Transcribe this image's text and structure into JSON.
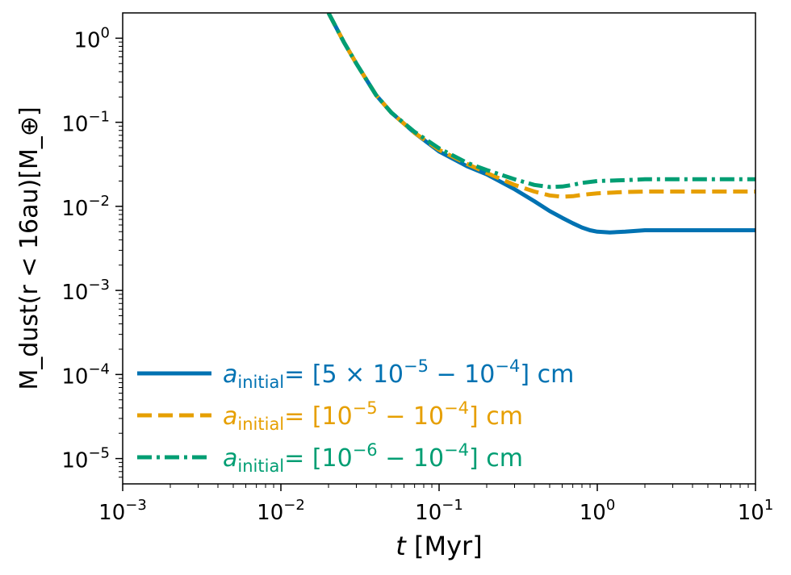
{
  "chart_data": {
    "type": "line",
    "title": "",
    "x_scale": "log",
    "y_scale": "log",
    "xlim": [
      0.001,
      10
    ],
    "ylim": [
      5e-06,
      2
    ],
    "xlabel_var": "t",
    "xlabel_unit": " [Myr]",
    "ylabel": "M_dust(r < 16au)[M_⊕]",
    "x_ticks": [
      {
        "value": 0.001,
        "base": "10",
        "exp": "−3"
      },
      {
        "value": 0.01,
        "base": "10",
        "exp": "−2"
      },
      {
        "value": 0.1,
        "base": "10",
        "exp": "−1"
      },
      {
        "value": 1,
        "base": "10",
        "exp": "0"
      },
      {
        "value": 10,
        "base": "10",
        "exp": "1"
      }
    ],
    "y_ticks": [
      {
        "value": 1e-05,
        "base": "10",
        "exp": "−5"
      },
      {
        "value": 0.0001,
        "base": "10",
        "exp": "−4"
      },
      {
        "value": 0.001,
        "base": "10",
        "exp": "−3"
      },
      {
        "value": 0.01,
        "base": "10",
        "exp": "−2"
      },
      {
        "value": 0.1,
        "base": "10",
        "exp": "−1"
      },
      {
        "value": 1,
        "base": "10",
        "exp": "0"
      }
    ],
    "legend_position": "lower-left",
    "series": [
      {
        "name": "a_initial = [5 × 10^−5 − 10^−4] cm",
        "legend_a": "a",
        "legend_sub": "initial",
        "legend_text": "= [5 × 10",
        "legend_parts": [
          {
            "t": "= [5 × 10",
            "sup": "−5"
          },
          {
            "t": " − 10",
            "sup": "−4"
          },
          {
            "t": "] cm",
            "sup": ""
          }
        ],
        "color": "#0072b2",
        "dash": "solid",
        "x": [
          0.02,
          0.025,
          0.03,
          0.04,
          0.05,
          0.07,
          0.1,
          0.15,
          0.2,
          0.3,
          0.4,
          0.5,
          0.6,
          0.7,
          0.8,
          0.9,
          1.0,
          1.2,
          1.5,
          2.0,
          3.0,
          5.0,
          10.0
        ],
        "y": [
          2.0,
          0.9,
          0.5,
          0.21,
          0.13,
          0.075,
          0.045,
          0.03,
          0.024,
          0.016,
          0.0115,
          0.0088,
          0.0073,
          0.0063,
          0.0056,
          0.0052,
          0.005,
          0.0049,
          0.005,
          0.0052,
          0.0052,
          0.0052,
          0.0052
        ]
      },
      {
        "name": "a_initial = [10^−5 − 10^−4] cm",
        "legend_a": "a",
        "legend_sub": "initial",
        "legend_parts": [
          {
            "t": "= [10",
            "sup": "−5"
          },
          {
            "t": " − 10",
            "sup": "−4"
          },
          {
            "t": "] cm",
            "sup": ""
          }
        ],
        "color": "#e69f00",
        "dash": "dashed",
        "x": [
          0.02,
          0.025,
          0.03,
          0.04,
          0.05,
          0.07,
          0.1,
          0.15,
          0.2,
          0.3,
          0.4,
          0.5,
          0.6,
          0.7,
          0.8,
          1.0,
          1.5,
          2.0,
          3.0,
          5.0,
          10.0
        ],
        "y": [
          2.0,
          0.9,
          0.5,
          0.21,
          0.13,
          0.075,
          0.047,
          0.032,
          0.025,
          0.018,
          0.015,
          0.0135,
          0.013,
          0.0132,
          0.0137,
          0.0143,
          0.0148,
          0.015,
          0.015,
          0.015,
          0.015
        ]
      },
      {
        "name": "a_initial = [10^−6 − 10^−4] cm",
        "legend_a": "a",
        "legend_sub": "initial",
        "legend_parts": [
          {
            "t": "= [10",
            "sup": "−6"
          },
          {
            "t": " − 10",
            "sup": "−4"
          },
          {
            "t": "] cm",
            "sup": ""
          }
        ],
        "color": "#009e73",
        "dash": "dashdot",
        "x": [
          0.02,
          0.025,
          0.03,
          0.04,
          0.05,
          0.07,
          0.1,
          0.15,
          0.2,
          0.3,
          0.4,
          0.5,
          0.6,
          0.7,
          0.8,
          1.0,
          1.5,
          2.0,
          3.0,
          5.0,
          10.0
        ],
        "y": [
          2.0,
          0.9,
          0.5,
          0.21,
          0.13,
          0.077,
          0.049,
          0.033,
          0.027,
          0.021,
          0.018,
          0.017,
          0.0172,
          0.018,
          0.019,
          0.02,
          0.0205,
          0.021,
          0.021,
          0.021,
          0.021
        ]
      }
    ]
  }
}
